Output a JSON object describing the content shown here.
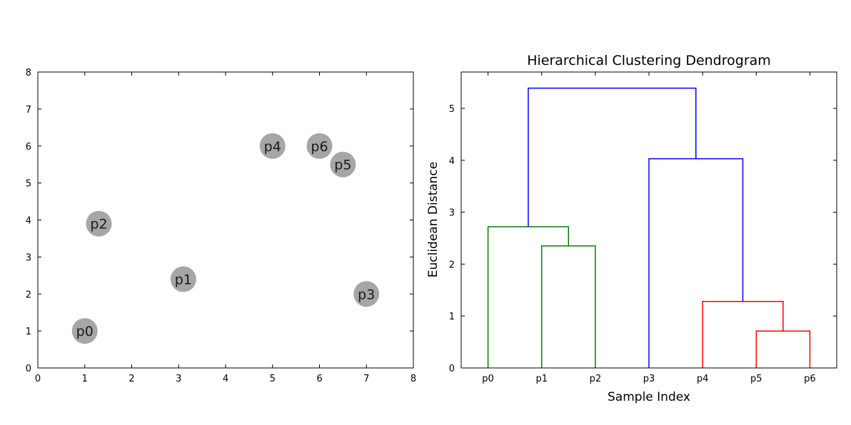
{
  "chart_data": [
    {
      "type": "scatter",
      "title": "",
      "xlabel": "",
      "ylabel": "",
      "xlim": [
        0,
        8
      ],
      "ylim": [
        0,
        8
      ],
      "xticks": [
        "0",
        "1",
        "2",
        "3",
        "4",
        "5",
        "6",
        "7",
        "8"
      ],
      "yticks": [
        "0",
        "1",
        "2",
        "3",
        "4",
        "5",
        "6",
        "7",
        "8"
      ],
      "grid": false,
      "marker_color": "#a6a6a6",
      "points": [
        {
          "label": "p0",
          "x": 1.0,
          "y": 1.0
        },
        {
          "label": "p1",
          "x": 3.1,
          "y": 2.4
        },
        {
          "label": "p2",
          "x": 1.3,
          "y": 3.9
        },
        {
          "label": "p3",
          "x": 7.0,
          "y": 2.0
        },
        {
          "label": "p4",
          "x": 5.0,
          "y": 6.0
        },
        {
          "label": "p5",
          "x": 6.5,
          "y": 5.5
        },
        {
          "label": "p6",
          "x": 6.0,
          "y": 6.0
        }
      ]
    },
    {
      "type": "dendrogram",
      "title": "Hierarchical Clustering Dendrogram",
      "xlabel": "Sample Index",
      "ylabel": "Euclidean Distance",
      "leaves": [
        "p0",
        "p1",
        "p2",
        "p3",
        "p4",
        "p5",
        "p6"
      ],
      "ylim": [
        0,
        5.7
      ],
      "yticks": [
        "0",
        "1",
        "2",
        "3",
        "4",
        "5"
      ],
      "grid": false,
      "colors": {
        "green": "#008000",
        "red": "#ff0000",
        "blue": "#0000ff"
      },
      "links": [
        {
          "left": "p5",
          "right": "p6",
          "height": 0.71,
          "color": "red"
        },
        {
          "left": "p1",
          "right": "p2",
          "height": 2.35,
          "color": "green"
        },
        {
          "left": "p4",
          "right": "p5+p6",
          "height": 1.28,
          "color": "red"
        },
        {
          "left": "p0",
          "right": "p1+p2",
          "height": 2.72,
          "color": "green"
        },
        {
          "left": "p3",
          "right": "p4+p5+p6",
          "height": 4.03,
          "color": "blue"
        },
        {
          "left": "p0+p1+p2",
          "right": "p3+p4+p5+p6",
          "height": 5.39,
          "color": "blue"
        }
      ]
    }
  ]
}
